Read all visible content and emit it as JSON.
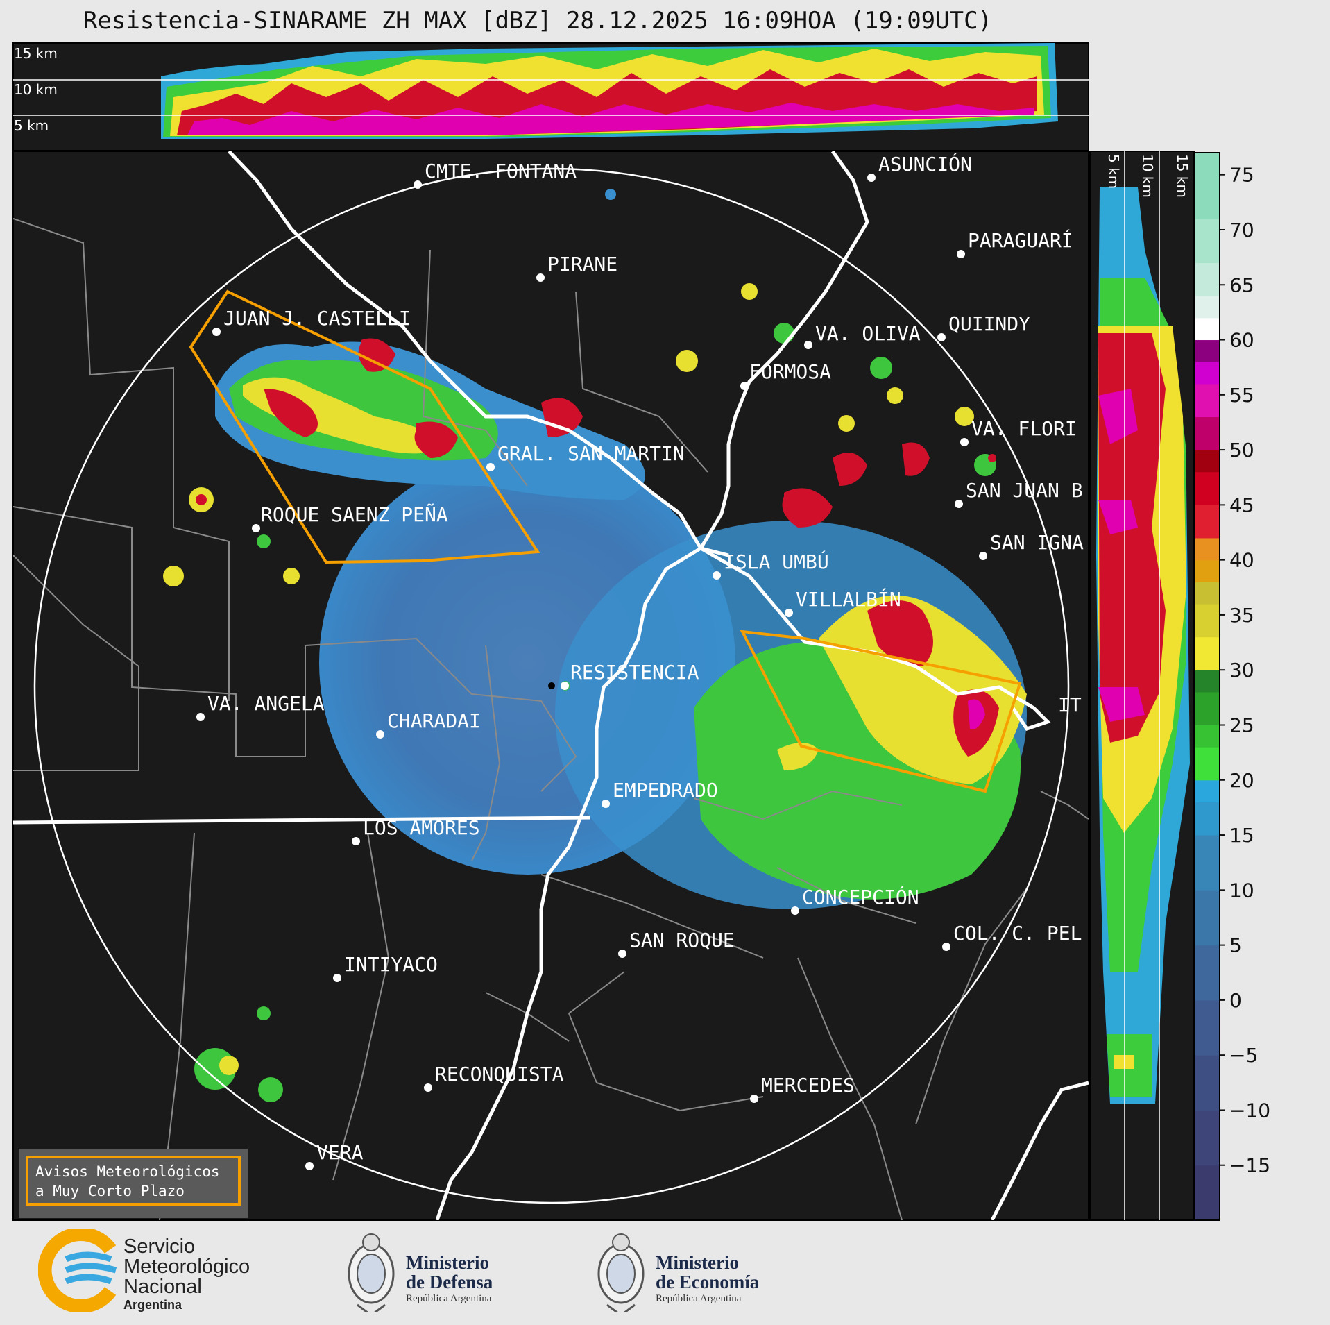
{
  "title": "Resistencia-SINARAME ZH MAX [dBZ] 28.12.2025 16:09HOA (19:09UTC)",
  "top_panel": {
    "km_labels": [
      "15 km",
      "10 km",
      "5 km"
    ]
  },
  "side_panel": {
    "km_labels": [
      "5 km",
      "10 km",
      "15 km"
    ]
  },
  "cities": [
    {
      "name": "CMTE. FONTANA"
    },
    {
      "name": "ASUNCIÓN"
    },
    {
      "name": "PARAGUARÍ"
    },
    {
      "name": "PIRANE"
    },
    {
      "name": "JUAN J. CASTELLI"
    },
    {
      "name": "QUIINDY"
    },
    {
      "name": "VA. OLIVA"
    },
    {
      "name": "FORMOSA"
    },
    {
      "name": "VA. FLORI"
    },
    {
      "name": "GRAL. SAN MARTIN"
    },
    {
      "name": "SAN JUAN B"
    },
    {
      "name": "ROQUE SAENZ PEÑA"
    },
    {
      "name": "SAN IGNA"
    },
    {
      "name": "ISLA UMBÚ"
    },
    {
      "name": "VILLALBÍN"
    },
    {
      "name": "RESISTENCIA"
    },
    {
      "name": "VA. ANGELA"
    },
    {
      "name": "CHARADAI"
    },
    {
      "name": "EMPEDRADO"
    },
    {
      "name": "LOS AMORES"
    },
    {
      "name": "CONCEPCIÓN"
    },
    {
      "name": "COL. C. PEL"
    },
    {
      "name": "SAN ROQUE"
    },
    {
      "name": "INTIYACO"
    },
    {
      "name": "RECONQUISTA"
    },
    {
      "name": "MERCEDES"
    },
    {
      "name": "VERA"
    },
    {
      "name": "IT"
    }
  ],
  "colorbar": {
    "unit": "dBZ",
    "ticks": [
      "75",
      "70",
      "65",
      "60",
      "55",
      "50",
      "45",
      "40",
      "35",
      "30",
      "25",
      "20",
      "15",
      "10",
      "5",
      "0",
      "−5",
      "−10",
      "−15"
    ],
    "range": [
      -20,
      77
    ]
  },
  "avisos": {
    "line1": "Avisos Meteorológicos",
    "line2": "a Muy Corto Plazo",
    "border_color": "#f5a000"
  },
  "logos": {
    "smn": {
      "l1": "Servicio",
      "l2": "Meteorológico",
      "l3": "Nacional",
      "l4": "Argentina"
    },
    "defensa": {
      "m1": "Ministerio",
      "m2": "de Defensa",
      "m3": "República Argentina"
    },
    "economia": {
      "m1": "Ministerio",
      "m2": "de Economía",
      "m3": "República Argentina"
    }
  }
}
